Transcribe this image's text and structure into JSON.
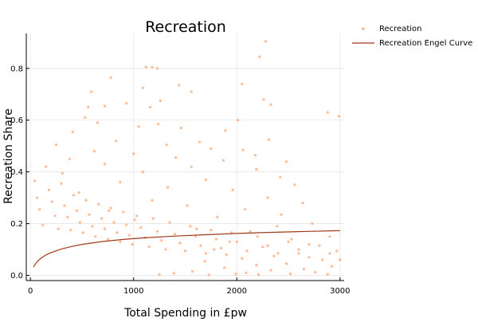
{
  "chart_data": {
    "type": "scatter",
    "title": "Recreation",
    "xlabel": "Total Spending in £pw",
    "ylabel": "Recreation Share",
    "xlim": [
      -40,
      3040
    ],
    "ylim": [
      -0.02,
      0.935
    ],
    "xticks": [
      0,
      1000,
      2000,
      3000
    ],
    "yticks": [
      0.0,
      0.2,
      0.4,
      0.6,
      0.8
    ],
    "ytick_labels": [
      "0.0",
      "0.2",
      "0.4",
      "0.6",
      "0.8"
    ],
    "grid": true,
    "legend_position": "outside-top-right",
    "series": [
      {
        "name": "Recreation",
        "kind": "scatter",
        "color": "#ff7f3a",
        "points": [
          [
            2280,
            0.905
          ],
          [
            2220,
            0.845
          ],
          [
            1120,
            0.805
          ],
          [
            1180,
            0.805
          ],
          [
            1230,
            0.8
          ],
          [
            780,
            0.765
          ],
          [
            2050,
            0.74
          ],
          [
            1440,
            0.735
          ],
          [
            1090,
            0.725
          ],
          [
            1560,
            0.71
          ],
          [
            590,
            0.71
          ],
          [
            2260,
            0.68
          ],
          [
            1260,
            0.675
          ],
          [
            930,
            0.665
          ],
          [
            2330,
            0.66
          ],
          [
            720,
            0.655
          ],
          [
            560,
            0.65
          ],
          [
            1160,
            0.65
          ],
          [
            2880,
            0.63
          ],
          [
            2990,
            0.615
          ],
          [
            530,
            0.61
          ],
          [
            2010,
            0.6
          ],
          [
            650,
            0.59
          ],
          [
            1240,
            0.585
          ],
          [
            1050,
            0.575
          ],
          [
            1460,
            0.57
          ],
          [
            1890,
            0.56
          ],
          [
            410,
            0.555
          ],
          [
            2310,
            0.525
          ],
          [
            830,
            0.52
          ],
          [
            1640,
            0.515
          ],
          [
            1320,
            0.505
          ],
          [
            250,
            0.505
          ],
          [
            1750,
            0.49
          ],
          [
            2060,
            0.485
          ],
          [
            620,
            0.48
          ],
          [
            1000,
            0.47
          ],
          [
            2180,
            0.465
          ],
          [
            1410,
            0.455
          ],
          [
            380,
            0.45
          ],
          [
            1870,
            0.445
          ],
          [
            2480,
            0.44
          ],
          [
            720,
            0.43
          ],
          [
            1560,
            0.42
          ],
          [
            2190,
            0.41
          ],
          [
            1090,
            0.4
          ],
          [
            310,
            0.395
          ],
          [
            2420,
            0.38
          ],
          [
            1700,
            0.37
          ],
          [
            870,
            0.36
          ],
          [
            2560,
            0.35
          ],
          [
            1330,
            0.34
          ],
          [
            1960,
            0.33
          ],
          [
            470,
            0.32
          ],
          [
            2300,
            0.3
          ],
          [
            1180,
            0.29
          ],
          [
            2640,
            0.28
          ],
          [
            1520,
            0.27
          ],
          [
            2080,
            0.255
          ],
          [
            760,
            0.25
          ],
          [
            2430,
            0.235
          ],
          [
            1810,
            0.225
          ],
          [
            1010,
            0.215
          ],
          [
            2730,
            0.2
          ],
          [
            2390,
            0.19
          ],
          [
            1610,
            0.18
          ],
          [
            2130,
            0.17
          ],
          [
            2900,
            0.15
          ],
          [
            2530,
            0.14
          ],
          [
            1930,
            0.13
          ],
          [
            2700,
            0.12
          ],
          [
            2250,
            0.11
          ],
          [
            1780,
            0.1
          ],
          [
            2970,
            0.095
          ],
          [
            2600,
            0.085
          ],
          [
            2360,
            0.075
          ],
          [
            2050,
            0.065
          ],
          [
            2830,
            0.06
          ],
          [
            1690,
            0.055
          ],
          [
            2480,
            0.045
          ],
          [
            2190,
            0.04
          ],
          [
            2920,
            0.035
          ],
          [
            1880,
            0.03
          ],
          [
            2650,
            0.025
          ],
          [
            2330,
            0.02
          ],
          [
            1570,
            0.015
          ],
          [
            2760,
            0.012
          ],
          [
            2090,
            0.01
          ],
          [
            1390,
            0.008
          ],
          [
            2520,
            0.006
          ],
          [
            1990,
            0.005
          ],
          [
            2880,
            0.004
          ],
          [
            1250,
            0.003
          ],
          [
            2210,
            0.003
          ],
          [
            1730,
            0.002
          ],
          [
            40,
            0.365
          ],
          [
            65,
            0.3
          ],
          [
            90,
            0.255
          ],
          [
            120,
            0.195
          ],
          [
            150,
            0.42
          ],
          [
            180,
            0.33
          ],
          [
            210,
            0.285
          ],
          [
            240,
            0.23
          ],
          [
            270,
            0.18
          ],
          [
            300,
            0.355
          ],
          [
            330,
            0.27
          ],
          [
            360,
            0.225
          ],
          [
            390,
            0.175
          ],
          [
            420,
            0.31
          ],
          [
            450,
            0.25
          ],
          [
            480,
            0.205
          ],
          [
            510,
            0.165
          ],
          [
            540,
            0.29
          ],
          [
            570,
            0.235
          ],
          [
            600,
            0.19
          ],
          [
            630,
            0.15
          ],
          [
            660,
            0.275
          ],
          [
            690,
            0.22
          ],
          [
            720,
            0.18
          ],
          [
            750,
            0.14
          ],
          [
            780,
            0.26
          ],
          [
            810,
            0.205
          ],
          [
            840,
            0.165
          ],
          [
            870,
            0.13
          ],
          [
            900,
            0.245
          ],
          [
            930,
            0.195
          ],
          [
            960,
            0.155
          ],
          [
            990,
            0.12
          ],
          [
            1030,
            0.23
          ],
          [
            1070,
            0.185
          ],
          [
            1110,
            0.145
          ],
          [
            1150,
            0.11
          ],
          [
            1190,
            0.22
          ],
          [
            1230,
            0.17
          ],
          [
            1270,
            0.135
          ],
          [
            1310,
            0.1
          ],
          [
            1350,
            0.205
          ],
          [
            1400,
            0.16
          ],
          [
            1450,
            0.125
          ],
          [
            1500,
            0.095
          ],
          [
            1550,
            0.19
          ],
          [
            1600,
            0.15
          ],
          [
            1650,
            0.115
          ],
          [
            1700,
            0.085
          ],
          [
            1750,
            0.175
          ],
          [
            1800,
            0.14
          ],
          [
            1850,
            0.105
          ],
          [
            1900,
            0.08
          ],
          [
            1950,
            0.165
          ],
          [
            2000,
            0.13
          ],
          [
            2100,
            0.095
          ],
          [
            2200,
            0.15
          ],
          [
            2300,
            0.115
          ],
          [
            2400,
            0.085
          ],
          [
            2500,
            0.13
          ],
          [
            2600,
            0.1
          ],
          [
            2700,
            0.07
          ],
          [
            2800,
            0.115
          ],
          [
            2900,
            0.085
          ],
          [
            3000,
            0.06
          ]
        ]
      },
      {
        "name": "Recreation Engel Curve",
        "kind": "line",
        "color": "#a0391a",
        "x": [
          30,
          60,
          100,
          150,
          200,
          300,
          400,
          500,
          700,
          900,
          1100,
          1400,
          1700,
          2000,
          2300,
          2600,
          3000
        ],
        "y": [
          0.033,
          0.051,
          0.066,
          0.079,
          0.088,
          0.102,
          0.112,
          0.12,
          0.131,
          0.139,
          0.145,
          0.152,
          0.157,
          0.162,
          0.166,
          0.169,
          0.173
        ]
      }
    ]
  }
}
